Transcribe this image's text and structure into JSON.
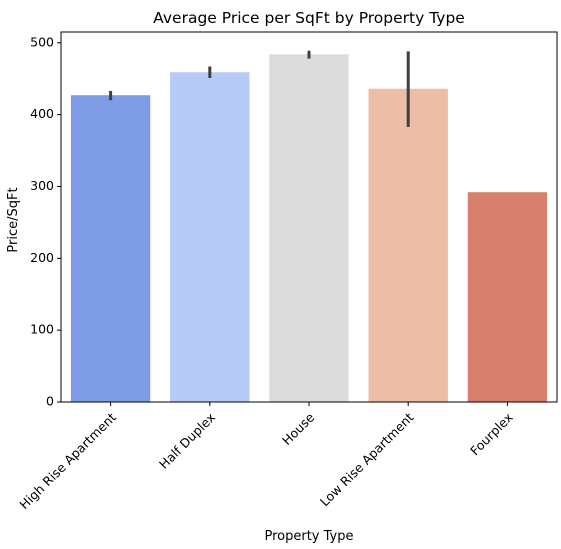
{
  "chart_data": {
    "type": "bar",
    "title": "Average Price per SqFt by Property Type",
    "xlabel": "Property Type",
    "ylabel": "Price/SqFt",
    "ylim": [
      0,
      515
    ],
    "yticks": [
      0,
      100,
      200,
      300,
      400,
      500
    ],
    "categories": [
      "High Rise Apartment",
      "Half Duplex",
      "House",
      "Low Rise Apartment",
      "Fourplex"
    ],
    "values": [
      427,
      459,
      484,
      436,
      292
    ],
    "error_low": [
      420,
      451,
      478,
      383,
      null
    ],
    "error_high": [
      433,
      467,
      489,
      488,
      null
    ],
    "colors": [
      "#7f9ce6",
      "#b5cbf5",
      "#dcdcdc",
      "#edbda6",
      "#d7806d"
    ],
    "grid": false,
    "legend": "none"
  }
}
